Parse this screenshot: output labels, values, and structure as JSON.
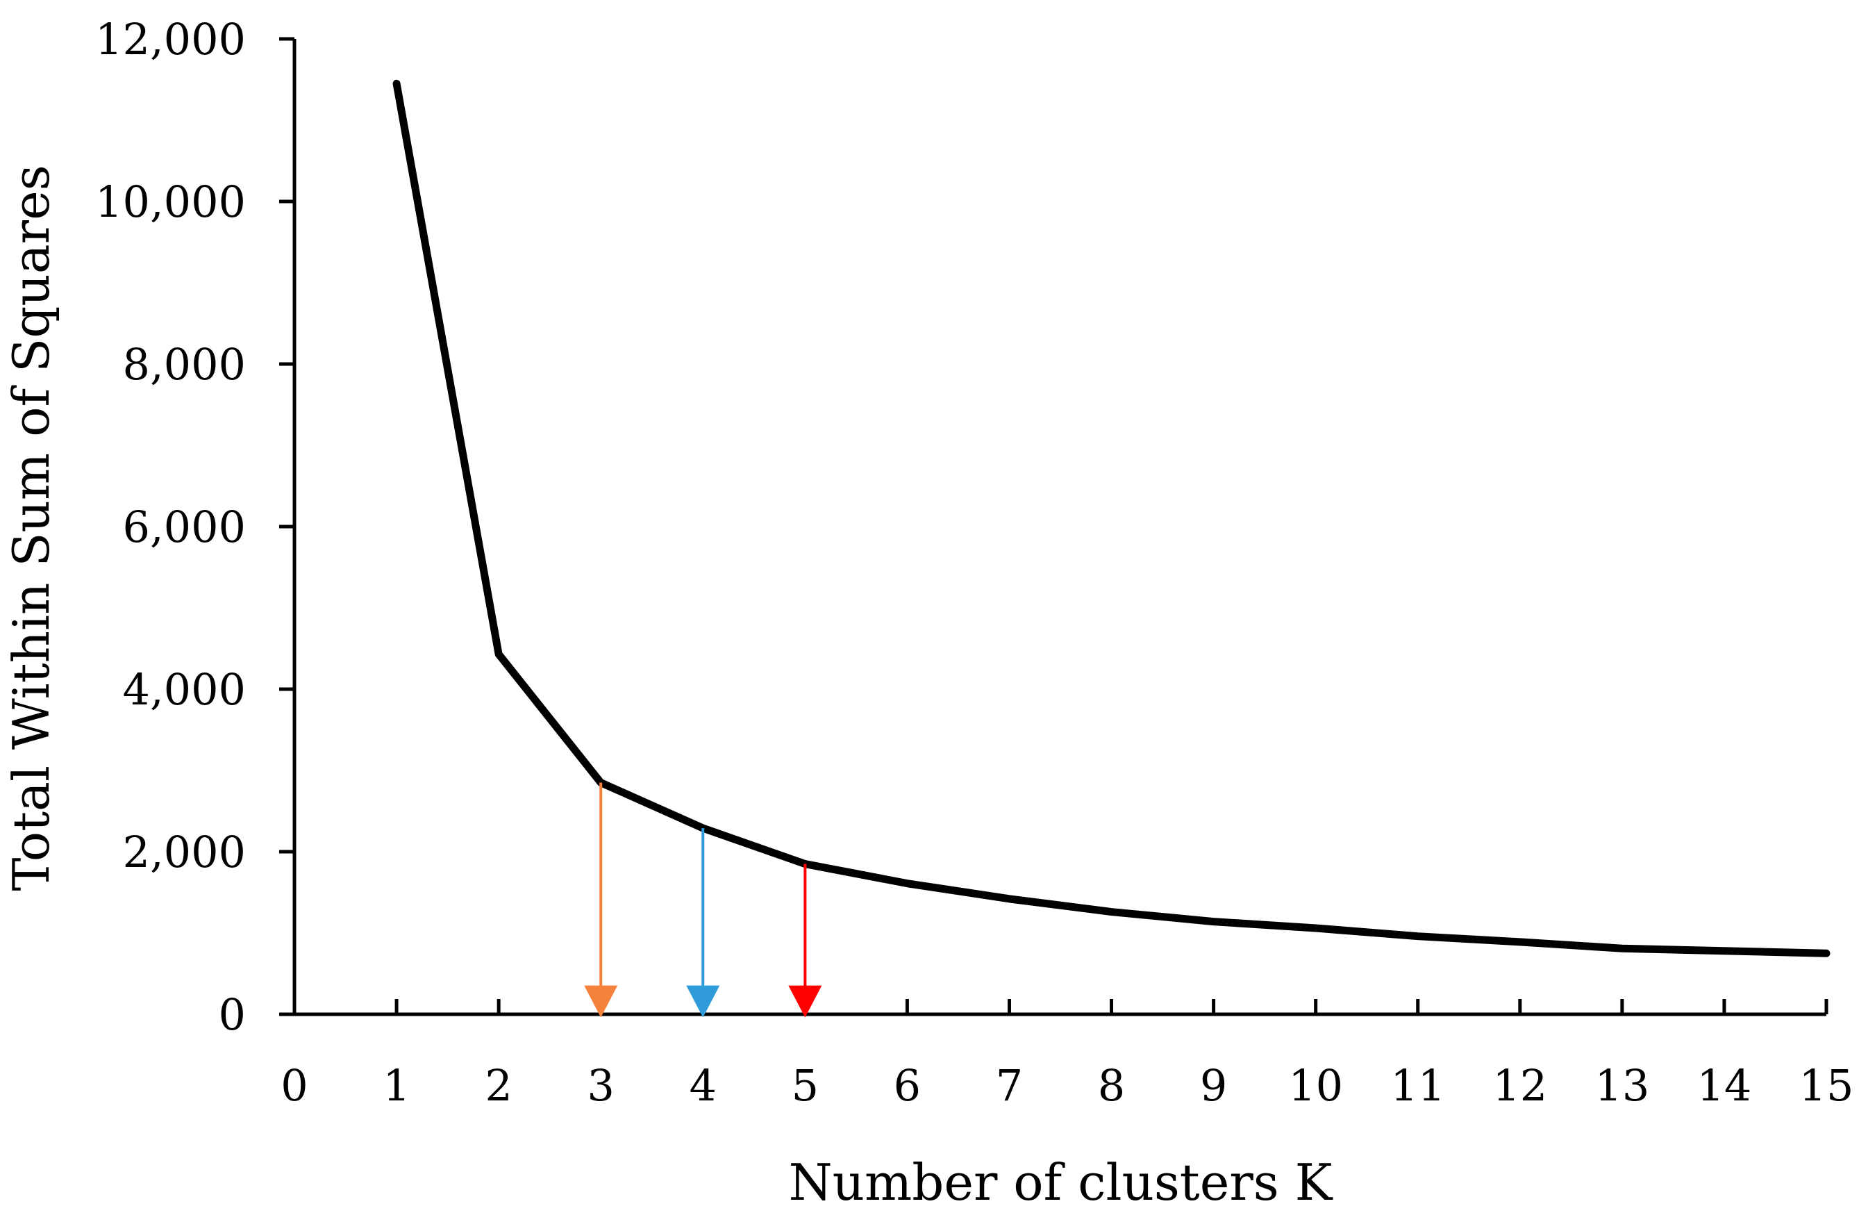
{
  "chart_data": {
    "type": "line",
    "title": "",
    "xlabel": "Number of clusters K",
    "ylabel": "Total Within Sum of Squares",
    "xlim": [
      0,
      15
    ],
    "ylim": [
      0,
      12000
    ],
    "x_ticks": [
      "0",
      "1",
      "2",
      "3",
      "4",
      "5",
      "6",
      "7",
      "8",
      "9",
      "10",
      "11",
      "12",
      "13",
      "14",
      "15"
    ],
    "y_ticks": [
      "0",
      "2,000",
      "4,000",
      "6,000",
      "8,000",
      "10,000",
      "12,000"
    ],
    "grid": false,
    "series": [
      {
        "color": "#000000",
        "x": [
          1,
          2,
          3,
          4,
          5,
          6,
          7,
          8,
          9,
          10,
          11,
          12,
          13,
          14,
          15
        ],
        "y": [
          11450,
          4430,
          2850,
          2290,
          1850,
          1610,
          1420,
          1260,
          1140,
          1060,
          960,
          890,
          810,
          780,
          750
        ]
      }
    ],
    "annotations": [
      {
        "type": "arrow",
        "x": 3,
        "y_from": 2850,
        "y_to": 200,
        "color": "#f5823b"
      },
      {
        "type": "arrow",
        "x": 4,
        "y_from": 2290,
        "y_to": 200,
        "color": "#2f9bd9"
      },
      {
        "type": "arrow",
        "x": 5,
        "y_from": 1850,
        "y_to": 200,
        "color": "#ff0000"
      }
    ]
  }
}
